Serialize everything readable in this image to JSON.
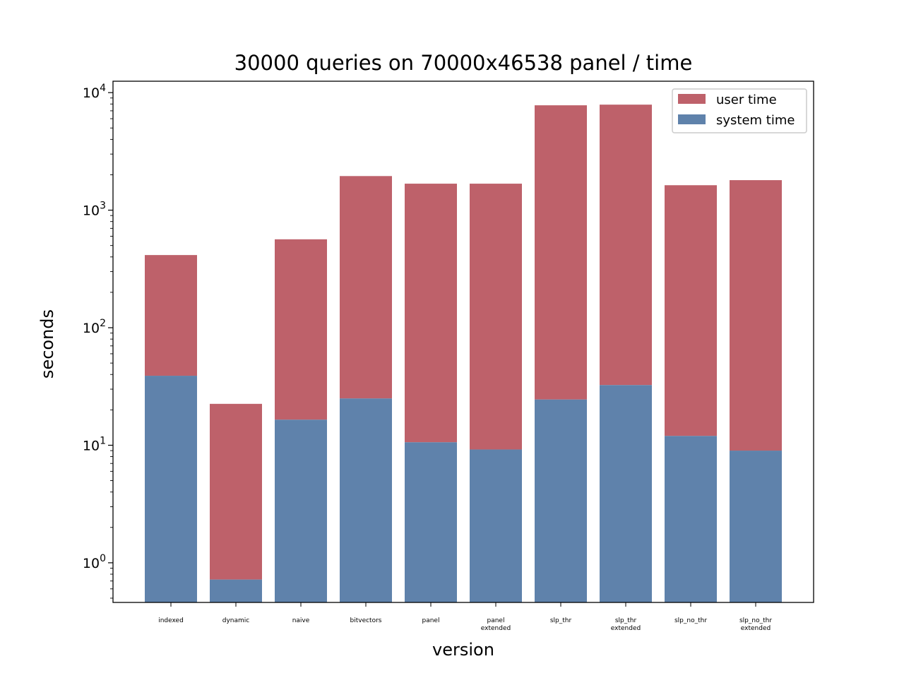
{
  "chart_data": {
    "type": "bar",
    "stacked": true,
    "title": "30000 queries on 70000x46538 panel / time",
    "xlabel": "version",
    "ylabel": "seconds",
    "yscale": "log",
    "ylim": [
      0.46,
      12500
    ],
    "grid": false,
    "legend_position": "top-right",
    "categories": [
      [
        "indexed"
      ],
      [
        "dynamic"
      ],
      [
        "naive"
      ],
      [
        "bitvectors"
      ],
      [
        "panel"
      ],
      [
        "panel",
        "extended"
      ],
      [
        "slp_thr"
      ],
      [
        "slp_thr",
        "extended"
      ],
      [
        "slp_no_thr"
      ],
      [
        "slp_no_thr",
        "extended"
      ]
    ],
    "totals": [
      415,
      22.5,
      565,
      1950,
      1680,
      1680,
      7800,
      7900,
      1630,
      1800
    ],
    "series": [
      {
        "name": "system time",
        "color": "#5f82ab",
        "values": [
          39,
          0.72,
          16.5,
          25,
          10.6,
          9.2,
          24.5,
          32.5,
          12,
          9
        ]
      },
      {
        "name": "user time",
        "color": "#be616a",
        "values": [
          376,
          21.78,
          548.5,
          1925,
          1669.4,
          1670.8,
          7775.5,
          7867.5,
          1618,
          1791
        ]
      }
    ],
    "legend": [
      "user time",
      "system time"
    ],
    "yticks": [
      {
        "value": 1,
        "base": "10",
        "exp": "0"
      },
      {
        "value": 10,
        "base": "10",
        "exp": "1"
      },
      {
        "value": 100,
        "base": "10",
        "exp": "2"
      },
      {
        "value": 1000,
        "base": "10",
        "exp": "3"
      },
      {
        "value": 10000,
        "base": "10",
        "exp": "4"
      }
    ]
  }
}
